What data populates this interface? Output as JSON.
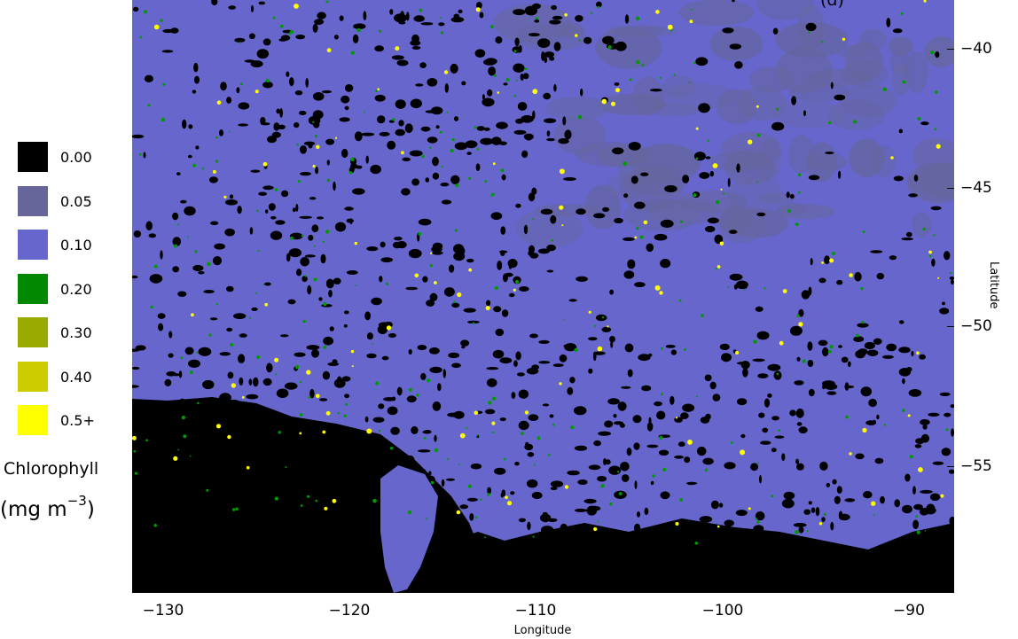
{
  "map": {
    "title_fragment": "(d)",
    "colors": {
      "no_data": "#000000",
      "low": "#6666a0",
      "mid": "#6666cc",
      "green": "#009900",
      "olive": "#99aa00",
      "yellowish": "#cccc00",
      "yellow": "#ffff00"
    },
    "x_axis": {
      "label": "Longitude",
      "ticks": [
        "−130",
        "−120",
        "−110",
        "−100",
        "−90"
      ],
      "range": [
        -132,
        -88
      ]
    },
    "y_axis": {
      "label": "Latitude",
      "ticks": [
        "−40",
        "−45",
        "−50",
        "−55"
      ],
      "range": [
        -60,
        -38
      ]
    }
  },
  "legend": {
    "title": "Chlorophyll",
    "unit_prefix": "(mg m",
    "unit_exp": "−3",
    "unit_suffix": ")",
    "items": [
      {
        "label": "0.00",
        "color": "#000000"
      },
      {
        "label": "0.05",
        "color": "#66669a"
      },
      {
        "label": "0.10",
        "color": "#6666cc"
      },
      {
        "label": "0.20",
        "color": "#008800"
      },
      {
        "label": "0.30",
        "color": "#99aa00"
      },
      {
        "label": "0.40",
        "color": "#cccc00"
      },
      {
        "label": "0.5+",
        "color": "#ffff00"
      }
    ]
  }
}
